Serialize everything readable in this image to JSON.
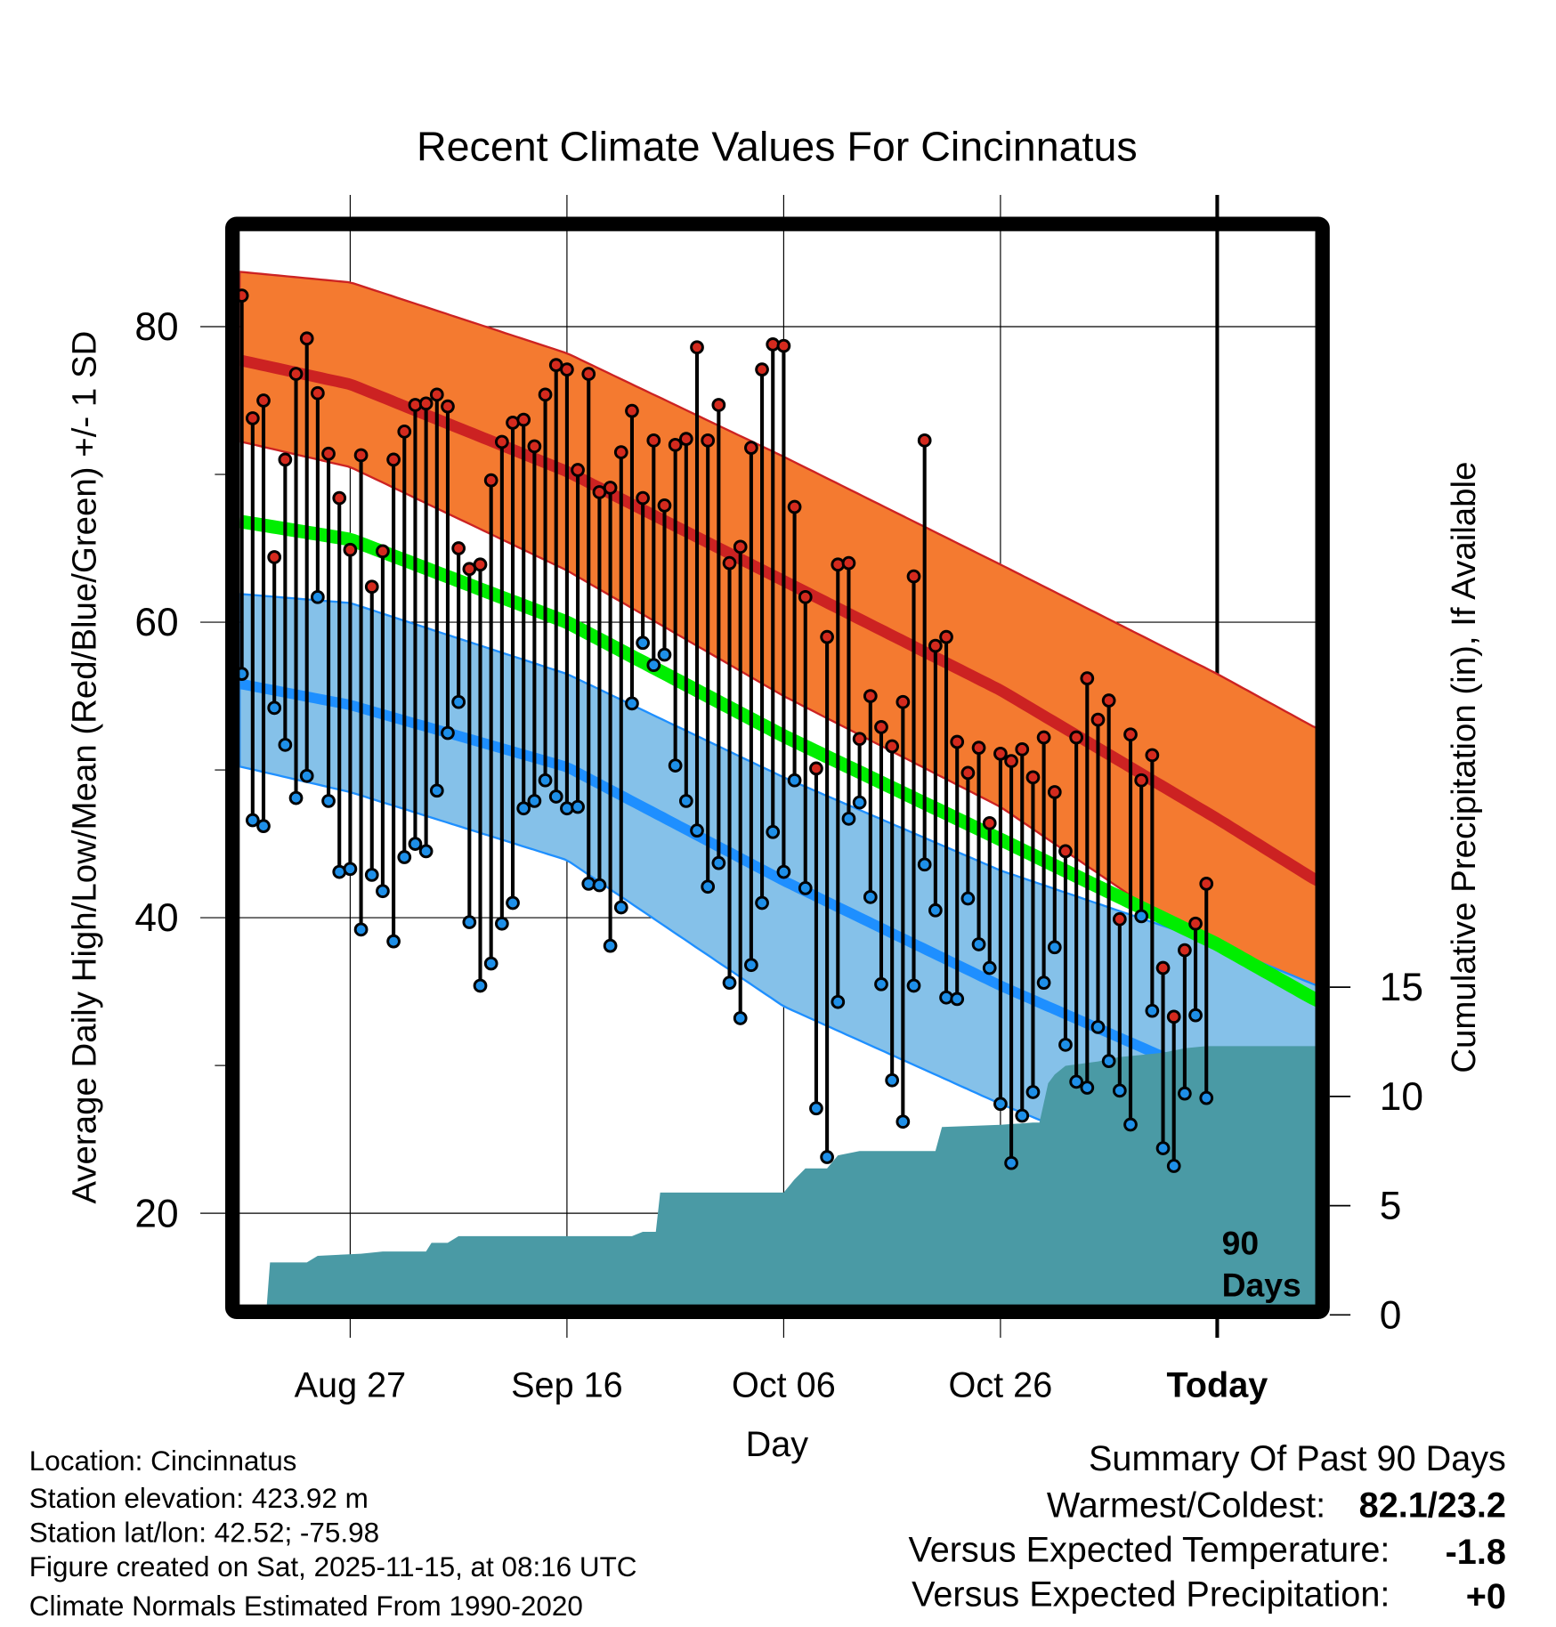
{
  "chart_data": {
    "type": "line",
    "title": "Recent Climate Values For Cincinnatus",
    "xlabel": "Day",
    "ylabel": "Average Daily High/Low/Mean (Red/Blue/Green) +/- 1 SD",
    "y2label": "Cumulative Precipitation (in), If Available",
    "ylim": [
      13.75,
      86.5
    ],
    "y2lim": [
      0,
      19
    ],
    "y_ticks": [
      "80",
      "60",
      "40",
      "20"
    ],
    "y2_ticks": [
      "15",
      "10",
      "5",
      "0"
    ],
    "x_ticks": [
      "Aug 27",
      "Sep 16",
      "Oct 06",
      "Oct 26",
      "Today"
    ],
    "x_tick_days": [
      10,
      30,
      50,
      70,
      90
    ],
    "start_date": "Aug 17",
    "today_label": "90 Days",
    "grid": true,
    "colors": {
      "high_band": "#f47a30",
      "high_mean": "#cc2222",
      "mean": "#00ee00",
      "low_band": "#85c1e9",
      "low_mean": "#1e8fff",
      "precip": "#4a9aa5",
      "high_dot": "#d42a1e",
      "low_dot": "#1e8fe8"
    },
    "highs": [
      82.1,
      73.8,
      75.0,
      64.4,
      71.0,
      76.8,
      79.2,
      75.5,
      71.4,
      68.4,
      64.9,
      71.3,
      62.4,
      64.8,
      71.0,
      72.9,
      74.7,
      74.8,
      75.4,
      74.6,
      65.0,
      63.6,
      63.9,
      69.6,
      72.2,
      73.5,
      73.7,
      71.9,
      75.4,
      77.4,
      77.1,
      70.3,
      76.8,
      68.8,
      69.1,
      71.5,
      74.3,
      68.4,
      72.3,
      67.9,
      72.0,
      72.4,
      78.6,
      72.3,
      74.7,
      64.0,
      65.1,
      71.8,
      77.1,
      78.8,
      78.7,
      67.8,
      61.7,
      50.1,
      59.0,
      63.9,
      64.0,
      52.1,
      55.0,
      52.9,
      51.6,
      54.6,
      63.1,
      72.3,
      58.4,
      59.0,
      51.9,
      49.8,
      51.5,
      46.4,
      51.1,
      50.6,
      51.4,
      49.5,
      52.2,
      48.5,
      44.5,
      52.2,
      56.2,
      53.4,
      54.7,
      39.9,
      52.4,
      49.3,
      51.0,
      36.6,
      33.3,
      37.8,
      39.6,
      42.3
    ],
    "lows": [
      56.5,
      46.6,
      46.2,
      54.2,
      51.7,
      48.1,
      49.6,
      61.7,
      47.9,
      43.1,
      43.3,
      39.2,
      42.9,
      41.8,
      38.4,
      44.1,
      45.0,
      44.5,
      48.6,
      52.5,
      54.6,
      39.7,
      35.4,
      36.9,
      39.6,
      41.0,
      47.4,
      47.9,
      49.3,
      48.2,
      47.4,
      47.5,
      42.3,
      42.2,
      38.1,
      40.7,
      54.5,
      58.6,
      57.1,
      57.8,
      50.3,
      47.9,
      45.9,
      42.1,
      43.7,
      35.6,
      33.2,
      36.8,
      41.0,
      45.8,
      43.1,
      49.3,
      42.0,
      27.1,
      23.8,
      34.3,
      46.7,
      47.8,
      41.4,
      35.5,
      29.0,
      26.2,
      35.4,
      43.6,
      40.5,
      34.6,
      34.5,
      41.3,
      38.2,
      36.6,
      27.4,
      23.4,
      26.6,
      28.2,
      35.6,
      38.0,
      31.4,
      28.9,
      28.5,
      32.6,
      30.3,
      28.3,
      26.0,
      40.1,
      33.7,
      24.4,
      23.2,
      28.1,
      33.4,
      27.8
    ],
    "normals": {
      "days": [
        0,
        10,
        30,
        50,
        70,
        90,
        99.2
      ],
      "high_upper": [
        83.7,
        83.0,
        78.2,
        71.2,
        63.9,
        56.5,
        52.8
      ],
      "high_mean": [
        77.7,
        76.1,
        70.2,
        62.8,
        55.4,
        46.7,
        42.5
      ],
      "high_lower": [
        72.2,
        70.5,
        63.5,
        55.0,
        47.5,
        37.5,
        33.2
      ],
      "mean": [
        66.8,
        65.6,
        60.0,
        52.3,
        45.3,
        38.2,
        34.4
      ],
      "low_upper": [
        61.9,
        61.3,
        56.5,
        49.5,
        43.2,
        38.2,
        35.4
      ],
      "low_mean": [
        55.8,
        54.4,
        50.2,
        42.5,
        35.4,
        29.0,
        26.0
      ],
      "low_lower": [
        50.2,
        48.5,
        43.9,
        34.0,
        27.4,
        21.4,
        18.0
      ]
    },
    "precip_cumulative_steps": [
      [
        0,
        0.4
      ],
      [
        2.3,
        0.4
      ],
      [
        2.6,
        2.4
      ],
      [
        6,
        2.4
      ],
      [
        7,
        2.7
      ],
      [
        11,
        2.8
      ],
      [
        13,
        2.9
      ],
      [
        17,
        2.9
      ],
      [
        17.5,
        3.3
      ],
      [
        19,
        3.3
      ],
      [
        20,
        3.6
      ],
      [
        36,
        3.6
      ],
      [
        37,
        3.8
      ],
      [
        38.2,
        3.8
      ],
      [
        38.6,
        5.6
      ],
      [
        50,
        5.6
      ],
      [
        51,
        6.2
      ],
      [
        52,
        6.7
      ],
      [
        54,
        6.7
      ],
      [
        55,
        7.3
      ],
      [
        57,
        7.5
      ],
      [
        64,
        7.5
      ],
      [
        64.6,
        8.6
      ],
      [
        70,
        8.7
      ],
      [
        73,
        8.8
      ],
      [
        73.6,
        8.8
      ],
      [
        74.4,
        10.6
      ],
      [
        75,
        11.0
      ],
      [
        76,
        11.4
      ],
      [
        79,
        11.6
      ],
      [
        81,
        11.8
      ],
      [
        85,
        12.0
      ],
      [
        87,
        12.2
      ],
      [
        89,
        12.3
      ],
      [
        99.2,
        12.3
      ]
    ]
  },
  "footer": {
    "location": "Location: Cincinnatus",
    "elevation": "Station elevation: 423.92 m",
    "latlon": "Station lat/lon: 42.52; -75.98",
    "created": "Figure created on Sat, 2025-11-15, at 08:16 UTC",
    "normals": "Climate Normals Estimated From 1990-2020"
  },
  "summary": {
    "title": "Summary Of Past 90 Days",
    "warmest_label": "Warmest/Coldest:",
    "warmest_value": "82.1/23.2",
    "temp_label": "Versus Expected Temperature:",
    "temp_value": "-1.8",
    "temp_color": "#1e8fff",
    "precip_label": "Versus Expected Precipitation:",
    "precip_value": "+0",
    "precip_color": "#22cc00"
  }
}
